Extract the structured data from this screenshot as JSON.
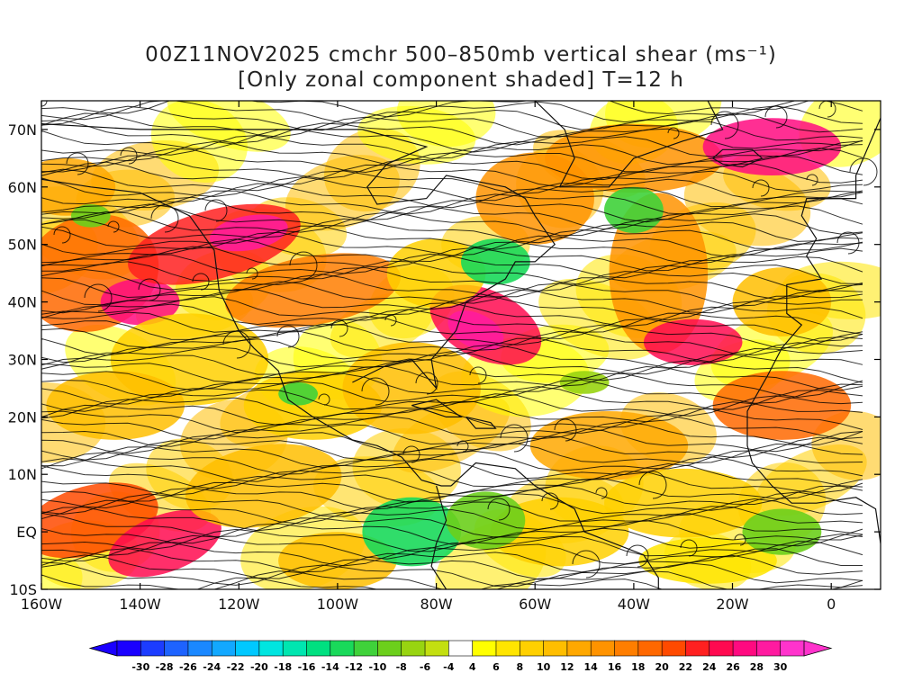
{
  "title": {
    "line1": "00Z11NOV2025 cmchr 500–850mb vertical shear (ms⁻¹)",
    "line2": "[Only zonal component shaded] T=12 h"
  },
  "map": {
    "lat_labels": [
      "70N",
      "60N",
      "50N",
      "40N",
      "30N",
      "20N",
      "10N",
      "EQ",
      "10S"
    ],
    "lon_labels": [
      "160W",
      "140W",
      "120W",
      "100W",
      "80W",
      "60W",
      "40W",
      "20W",
      "0"
    ],
    "lat_range": [
      -10,
      75
    ],
    "lon_range": [
      -160,
      10
    ]
  },
  "colorbar": {
    "ticks": [
      "-30",
      "-28",
      "-26",
      "-24",
      "-22",
      "-20",
      "-18",
      "-16",
      "-14",
      "-12",
      "-10",
      "-8",
      "-6",
      "-4",
      "4",
      "6",
      "8",
      "10",
      "12",
      "14",
      "16",
      "18",
      "20",
      "22",
      "24",
      "26",
      "28",
      "30"
    ],
    "colors": [
      "#1a00ff",
      "#1c3cff",
      "#1e63ff",
      "#1a88ff",
      "#12a8ff",
      "#00c8ff",
      "#00e5e0",
      "#00e6b0",
      "#00e080",
      "#19d95a",
      "#3fd23a",
      "#6ccf1c",
      "#98d411",
      "#c3df10",
      "#ffffff",
      "#ffff00",
      "#ffe500",
      "#ffd000",
      "#ffbe00",
      "#ffa800",
      "#ff9300",
      "#ff7e00",
      "#ff6800",
      "#ff4a00",
      "#ff2020",
      "#ff0a50",
      "#ff0a80",
      "#ff1aa0",
      "#ff33cc"
    ]
  }
}
